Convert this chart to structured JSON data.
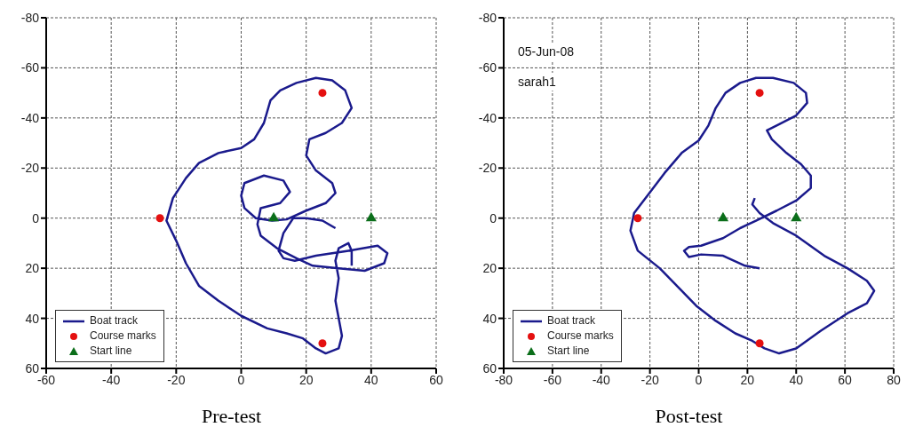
{
  "chart_data": [
    {
      "type": "line",
      "title": "Pre-test",
      "xlim": [
        -60,
        60
      ],
      "xticks": [
        -60,
        -40,
        -20,
        0,
        20,
        40,
        60
      ],
      "ylim": [
        60,
        -80
      ],
      "yticks": [
        -80,
        -60,
        -40,
        -20,
        0,
        20,
        40,
        60
      ],
      "grid": true,
      "legend": "bottom left",
      "series": [
        {
          "name": "Boat track",
          "type": "line",
          "marker": "none",
          "color": "#1a1a8c",
          "x": [
            29,
            25,
            20,
            16,
            13,
            11.5,
            13,
            16.5,
            23,
            33,
            42,
            45,
            44,
            38,
            30,
            22,
            17,
            11,
            6,
            5,
            6,
            12,
            15,
            13,
            7,
            1,
            0,
            1,
            4.5,
            9.5,
            14,
            20,
            26,
            29,
            28,
            23,
            20,
            21,
            26,
            31,
            34,
            32,
            28,
            23,
            17,
            12,
            9,
            7,
            4,
            0,
            -7,
            -13,
            -17,
            -21,
            -23,
            -20,
            -17,
            -13,
            -7,
            0,
            8,
            14,
            19,
            23,
            26,
            30,
            31,
            30,
            29,
            30,
            29,
            30,
            33,
            34,
            34
          ],
          "values": [
            4,
            1,
            0,
            0,
            6,
            13,
            16,
            17,
            15,
            13,
            11,
            14,
            18,
            21,
            20,
            19,
            16,
            12,
            7,
            2.5,
            -4,
            -6,
            -10.5,
            -15,
            -17,
            -14,
            -9,
            -4,
            0,
            1,
            0.5,
            -3,
            -6,
            -10,
            -14,
            -19,
            -25,
            -31.5,
            -34,
            -38,
            -44,
            -51,
            -55,
            -56,
            -54,
            -51,
            -47,
            -38,
            -31.5,
            -28,
            -26,
            -22,
            -16,
            -8,
            1,
            9,
            18,
            27,
            33,
            39,
            44,
            46,
            48,
            52,
            54,
            52,
            47,
            40,
            33,
            24,
            17,
            12,
            10,
            13,
            19
          ]
        },
        {
          "name": "Course marks",
          "type": "scatter",
          "marker": "circle",
          "color": "#e41010",
          "x": [
            -25,
            25,
            25
          ],
          "values": [
            0,
            -50,
            50
          ]
        },
        {
          "name": "Start line",
          "type": "scatter",
          "marker": "triangle",
          "color": "#0b6e1a",
          "x": [
            10,
            40
          ],
          "values": [
            0,
            0
          ]
        }
      ]
    },
    {
      "type": "line",
      "title": "Post-test",
      "annotations": [
        "05-Jun-08",
        "sarah1"
      ],
      "xlim": [
        -80,
        80
      ],
      "xticks": [
        -80,
        -60,
        -40,
        -20,
        0,
        20,
        40,
        60,
        80
      ],
      "ylim": [
        60,
        -80
      ],
      "yticks": [
        -80,
        -60,
        -40,
        -20,
        0,
        20,
        40,
        60
      ],
      "grid": true,
      "legend": "bottom left",
      "series": [
        {
          "name": "Boat track",
          "type": "line",
          "marker": "none",
          "color": "#1a1a8c",
          "x": [
            25,
            19,
            10,
            1,
            -4,
            -6,
            -4,
            1,
            10,
            17,
            23.5,
            32,
            40,
            46,
            46,
            42,
            36,
            30,
            28,
            32,
            40,
            44.5,
            44,
            39,
            30.5,
            23.5,
            17,
            11,
            7,
            4,
            0,
            -7,
            -14,
            -21,
            -26.5,
            -28,
            -25,
            -16,
            -8,
            -1,
            7,
            15,
            22,
            27,
            33,
            40,
            50,
            61,
            69,
            72,
            69,
            61,
            51.5,
            40,
            30.5,
            25,
            22,
            23
          ],
          "values": [
            20,
            19,
            15,
            14.5,
            15.5,
            13,
            11.5,
            11,
            8,
            4,
            1,
            -3,
            -7,
            -12,
            -17,
            -21.5,
            -26,
            -31.5,
            -35,
            -37,
            -41,
            -46,
            -50,
            -54,
            -56,
            -56,
            -54,
            -50,
            -44,
            -37,
            -31,
            -26,
            -18,
            -9,
            -2,
            5,
            13,
            20,
            28,
            35,
            41,
            46,
            49,
            52,
            54,
            52,
            45,
            38,
            34,
            29,
            25,
            20,
            15,
            7,
            2,
            -2,
            -5.5,
            -8
          ]
        },
        {
          "name": "Course marks",
          "type": "scatter",
          "marker": "circle",
          "color": "#e41010",
          "x": [
            -25,
            25,
            25
          ],
          "values": [
            0,
            -50,
            50
          ]
        },
        {
          "name": "Start line",
          "type": "scatter",
          "marker": "triangle",
          "color": "#0b6e1a",
          "x": [
            10,
            40
          ],
          "values": [
            0,
            0
          ]
        }
      ]
    }
  ]
}
